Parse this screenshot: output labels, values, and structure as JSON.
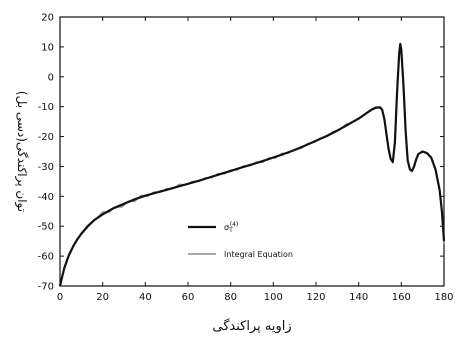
{
  "chart_data": {
    "type": "line",
    "xlabel": "زاویه پراکندگی",
    "ylabel": "توان پراکندگی(دسی بل)",
    "xlim": [
      0,
      180
    ],
    "ylim": [
      -70,
      20
    ],
    "xticks": [
      0,
      20,
      40,
      60,
      80,
      100,
      120,
      140,
      160,
      180
    ],
    "yticks": [
      20,
      10,
      0,
      -10,
      -20,
      -30,
      -40,
      -50,
      -60,
      -70
    ],
    "grid": false,
    "legend_position": "lower-right",
    "series": [
      {
        "name": "σ_T^(4)",
        "color": "#111111",
        "points": [
          [
            0,
            -70
          ],
          [
            1,
            -67
          ],
          [
            2,
            -64
          ],
          [
            4,
            -60
          ],
          [
            6,
            -57
          ],
          [
            8,
            -54.5
          ],
          [
            10,
            -52.5
          ],
          [
            13,
            -50
          ],
          [
            16,
            -48
          ],
          [
            20,
            -46
          ],
          [
            25,
            -44
          ],
          [
            30,
            -42.5
          ],
          [
            35,
            -41
          ],
          [
            40,
            -39.8
          ],
          [
            45,
            -38.8
          ],
          [
            50,
            -37.8
          ],
          [
            55,
            -36.8
          ],
          [
            60,
            -35.8
          ],
          [
            65,
            -34.8
          ],
          [
            70,
            -33.7
          ],
          [
            75,
            -32.6
          ],
          [
            80,
            -31.5
          ],
          [
            85,
            -30.4
          ],
          [
            90,
            -29.3
          ],
          [
            95,
            -28.2
          ],
          [
            100,
            -27
          ],
          [
            105,
            -25.8
          ],
          [
            110,
            -24.5
          ],
          [
            115,
            -23
          ],
          [
            120,
            -21.4
          ],
          [
            125,
            -19.8
          ],
          [
            130,
            -18
          ],
          [
            135,
            -16
          ],
          [
            140,
            -14
          ],
          [
            143,
            -12.5
          ],
          [
            146,
            -11
          ],
          [
            148,
            -10.3
          ],
          [
            150,
            -10.2
          ],
          [
            151,
            -11
          ],
          [
            152,
            -14
          ],
          [
            153,
            -19
          ],
          [
            154,
            -24
          ],
          [
            155,
            -27.5
          ],
          [
            156,
            -28.5
          ],
          [
            157,
            -22
          ],
          [
            158,
            -5
          ],
          [
            159,
            8
          ],
          [
            159.5,
            11
          ],
          [
            160,
            9
          ],
          [
            161,
            -3
          ],
          [
            162,
            -18
          ],
          [
            163,
            -28
          ],
          [
            164,
            -31
          ],
          [
            165,
            -31.5
          ],
          [
            166,
            -30
          ],
          [
            167,
            -27.5
          ],
          [
            168,
            -25.8
          ],
          [
            170,
            -25
          ],
          [
            172,
            -25.5
          ],
          [
            174,
            -27
          ],
          [
            176,
            -31
          ],
          [
            178,
            -38
          ],
          [
            179,
            -45
          ],
          [
            180,
            -55
          ]
        ]
      },
      {
        "name": "Integral Equation",
        "color": "#8a8a8a",
        "points": [
          [
            0,
            -69.5
          ],
          [
            2,
            -64.2
          ],
          [
            5,
            -58.6
          ],
          [
            8,
            -54.2
          ],
          [
            11,
            -52
          ],
          [
            14,
            -49.6
          ],
          [
            17,
            -47.5
          ],
          [
            20,
            -45.2
          ],
          [
            23,
            -45.3
          ],
          [
            26,
            -43.5
          ],
          [
            29,
            -43.6
          ],
          [
            32,
            -41.6
          ],
          [
            35,
            -41.7
          ],
          [
            38,
            -39.7
          ],
          [
            41,
            -40
          ],
          [
            44,
            -38.5
          ],
          [
            47,
            -38.7
          ],
          [
            50,
            -37.4
          ],
          [
            53,
            -37.4
          ],
          [
            56,
            -35.9
          ],
          [
            59,
            -36.2
          ],
          [
            62,
            -35
          ],
          [
            65,
            -35
          ],
          [
            68,
            -33.8
          ],
          [
            71,
            -33.8
          ],
          [
            74,
            -32.4
          ],
          [
            77,
            -32.5
          ],
          [
            80,
            -31.2
          ],
          [
            83,
            -31.2
          ],
          [
            86,
            -29.8
          ],
          [
            89,
            -29.8
          ],
          [
            92,
            -28.5
          ],
          [
            95,
            -28.6
          ],
          [
            98,
            -27.1
          ],
          [
            101,
            -27.2
          ],
          [
            104,
            -25.6
          ],
          [
            107,
            -25.6
          ],
          [
            110,
            -24.2
          ],
          [
            113,
            -24
          ],
          [
            116,
            -22.4
          ],
          [
            119,
            -22
          ],
          [
            122,
            -20.5
          ],
          [
            125,
            -20
          ],
          [
            128,
            -18.3
          ],
          [
            131,
            -17.8
          ],
          [
            134,
            -15.9
          ],
          [
            137,
            -15.3
          ],
          [
            140,
            -13.8
          ],
          [
            143,
            -12.4
          ],
          [
            146,
            -11.2
          ],
          [
            148,
            -10.6
          ],
          [
            150,
            -10.4
          ],
          [
            151,
            -11.2
          ],
          [
            152,
            -14.3
          ],
          [
            153,
            -19.3
          ],
          [
            154,
            -24.3
          ],
          [
            155,
            -27.8
          ],
          [
            156,
            -28.8
          ],
          [
            157,
            -22.5
          ],
          [
            158,
            -5.5
          ],
          [
            159,
            7.5
          ],
          [
            159.5,
            10.5
          ],
          [
            160,
            8.5
          ],
          [
            161,
            -3.5
          ],
          [
            162,
            -18.5
          ],
          [
            163,
            -28.3
          ],
          [
            164,
            -31.3
          ],
          [
            165,
            -31.8
          ],
          [
            166,
            -30.3
          ],
          [
            167,
            -27.8
          ],
          [
            168,
            -26
          ],
          [
            170,
            -25.2
          ],
          [
            172,
            -25.7
          ],
          [
            174,
            -27.3
          ],
          [
            176,
            -31.3
          ],
          [
            178,
            -38.5
          ],
          [
            179,
            -45.5
          ],
          [
            180,
            -56
          ]
        ]
      }
    ]
  }
}
